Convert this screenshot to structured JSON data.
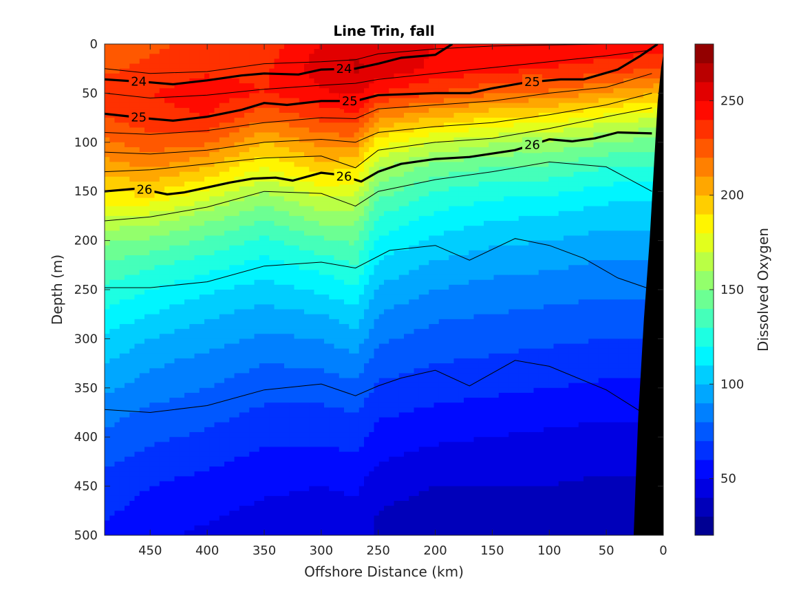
{
  "chart_data": {
    "type": "contour",
    "title": "Line Trin, fall",
    "xlabel": "Offshore Distance (km)",
    "ylabel": "Depth (m)",
    "colorbar_label": "Dissolved Oxygen",
    "x_reversed": true,
    "y_reversed": true,
    "xlim": [
      490,
      0
    ],
    "ylim": [
      500,
      0
    ],
    "xticks": [
      450,
      400,
      350,
      300,
      250,
      200,
      150,
      100,
      50,
      0
    ],
    "yticks": [
      0,
      50,
      100,
      150,
      200,
      250,
      300,
      350,
      400,
      450,
      500
    ],
    "colorbar": {
      "range": [
        20,
        280
      ],
      "ticks": [
        50,
        100,
        150,
        200,
        250
      ],
      "colormap": "jet",
      "levels": 26
    },
    "grid": false,
    "bathymetry_color": "#000000",
    "oxygen_field": {
      "x": [
        490,
        450,
        400,
        350,
        300,
        270,
        250,
        200,
        150,
        100,
        50,
        0
      ],
      "depth": [
        0,
        25,
        50,
        75,
        100,
        125,
        150,
        175,
        200,
        225,
        250,
        275,
        300,
        325,
        350,
        375,
        400,
        425,
        450,
        475,
        500
      ],
      "profiles": [
        [
          225,
          228,
          236,
          230,
          218,
          205,
          190,
          170,
          152,
          138,
          128,
          118,
          108,
          100,
          92,
          84,
          78,
          72,
          66,
          62,
          58
        ],
        [
          228,
          232,
          240,
          236,
          226,
          212,
          192,
          168,
          148,
          132,
          120,
          110,
          100,
          92,
          85,
          78,
          72,
          66,
          60,
          56,
          52
        ],
        [
          232,
          238,
          245,
          240,
          222,
          200,
          178,
          155,
          138,
          124,
          112,
          102,
          94,
          86,
          80,
          74,
          68,
          62,
          56,
          52,
          48
        ],
        [
          234,
          238,
          240,
          222,
          200,
          180,
          160,
          142,
          128,
          116,
          106,
          96,
          88,
          80,
          74,
          68,
          62,
          57,
          52,
          48,
          45
        ],
        [
          250,
          256,
          248,
          232,
          214,
          196,
          176,
          156,
          138,
          124,
          112,
          100,
          90,
          82,
          74,
          68,
          62,
          56,
          50,
          46,
          42
        ],
        [
          258,
          262,
          255,
          236,
          214,
          192,
          172,
          155,
          142,
          130,
          118,
          106,
          96,
          86,
          78,
          70,
          64,
          58,
          52,
          48,
          44
        ],
        [
          255,
          258,
          240,
          212,
          185,
          162,
          145,
          130,
          118,
          108,
          98,
          90,
          82,
          75,
          68,
          62,
          56,
          50,
          44,
          40,
          38
        ],
        [
          250,
          248,
          230,
          200,
          170,
          146,
          130,
          118,
          108,
          98,
          90,
          82,
          76,
          70,
          64,
          58,
          52,
          46,
          40,
          36,
          34
        ],
        [
          248,
          244,
          222,
          190,
          162,
          140,
          124,
          112,
          102,
          94,
          86,
          80,
          74,
          68,
          62,
          56,
          50,
          44,
          40,
          36,
          34
        ],
        [
          246,
          240,
          218,
          186,
          158,
          138,
          122,
          110,
          100,
          92,
          84,
          78,
          72,
          66,
          60,
          54,
          48,
          44,
          40,
          36,
          34
        ],
        [
          248,
          236,
          208,
          176,
          150,
          130,
          116,
          104,
          96,
          88,
          82,
          76,
          70,
          64,
          58,
          52,
          46,
          42,
          38,
          36,
          34
        ],
        [
          245,
          230,
          200,
          170,
          145,
          128,
          115,
          104,
          96,
          88,
          82,
          76,
          70,
          64,
          58,
          52,
          46,
          42,
          38,
          36,
          34
        ]
      ]
    },
    "density_contours": [
      {
        "label": "24",
        "bold": true,
        "x": [
          490,
          450,
          430,
          400,
          370,
          350,
          320,
          300,
          270,
          250,
          230,
          200,
          185
        ],
        "y": [
          36,
          39,
          41,
          37,
          32,
          30,
          31,
          26,
          25,
          20,
          14,
          11,
          0
        ]
      },
      {
        "label": "25",
        "bold": true,
        "x": [
          490,
          450,
          430,
          400,
          370,
          350,
          330,
          300,
          270,
          250,
          200,
          170,
          150,
          120,
          90,
          70,
          40,
          20,
          5
        ],
        "y": [
          71,
          76,
          78,
          74,
          67,
          60,
          62,
          58,
          58,
          52,
          50,
          50,
          45,
          39,
          36,
          36,
          26,
          12,
          0
        ]
      },
      {
        "label": "26",
        "bold": true,
        "x": [
          490,
          460,
          435,
          420,
          400,
          380,
          360,
          340,
          325,
          300,
          285,
          265,
          250,
          230,
          200,
          170,
          130,
          100,
          80,
          60,
          40,
          10
        ],
        "y": [
          150,
          147,
          153,
          151,
          146,
          141,
          137,
          136,
          139,
          131,
          133,
          140,
          130,
          122,
          117,
          115,
          108,
          97,
          99,
          96,
          90,
          91
        ]
      }
    ],
    "thin_contours": [
      {
        "x": [
          490,
          450,
          400,
          350,
          300,
          270,
          250,
          200,
          150,
          100,
          50,
          10
        ],
        "y": [
          25,
          30,
          28,
          20,
          18,
          16,
          10,
          5,
          2,
          1,
          0,
          0
        ]
      },
      {
        "x": [
          490,
          450,
          400,
          350,
          300,
          270,
          250,
          200,
          150,
          100,
          50,
          10
        ],
        "y": [
          50,
          55,
          52,
          46,
          42,
          40,
          36,
          30,
          24,
          18,
          12,
          6
        ]
      },
      {
        "x": [
          490,
          450,
          400,
          350,
          300,
          270,
          250,
          200,
          150,
          100,
          50,
          10
        ],
        "y": [
          90,
          92,
          88,
          80,
          75,
          76,
          66,
          62,
          58,
          50,
          44,
          30
        ]
      },
      {
        "x": [
          490,
          450,
          400,
          350,
          300,
          270,
          250,
          200,
          150,
          100,
          50,
          10
        ],
        "y": [
          110,
          112,
          108,
          100,
          97,
          100,
          90,
          84,
          80,
          72,
          62,
          50
        ]
      },
      {
        "x": [
          490,
          450,
          400,
          350,
          300,
          270,
          250,
          200,
          150,
          100,
          50,
          10
        ],
        "y": [
          130,
          128,
          122,
          116,
          114,
          126,
          108,
          100,
          96,
          86,
          74,
          65
        ]
      },
      {
        "x": [
          490,
          450,
          400,
          350,
          300,
          270,
          250,
          200,
          150,
          100,
          50,
          10
        ],
        "y": [
          180,
          176,
          166,
          150,
          152,
          165,
          150,
          138,
          130,
          120,
          125,
          150
        ]
      },
      {
        "x": [
          490,
          450,
          400,
          350,
          300,
          270,
          240,
          200,
          170,
          130,
          100,
          70,
          40,
          10
        ],
        "y": [
          248,
          248,
          242,
          226,
          222,
          228,
          210,
          205,
          220,
          198,
          205,
          218,
          238,
          250
        ]
      },
      {
        "x": [
          490,
          450,
          400,
          350,
          300,
          270,
          250,
          230,
          200,
          170,
          130,
          100,
          50,
          20
        ],
        "y": [
          372,
          375,
          368,
          352,
          346,
          358,
          348,
          340,
          332,
          348,
          322,
          328,
          352,
          374
        ]
      }
    ]
  }
}
